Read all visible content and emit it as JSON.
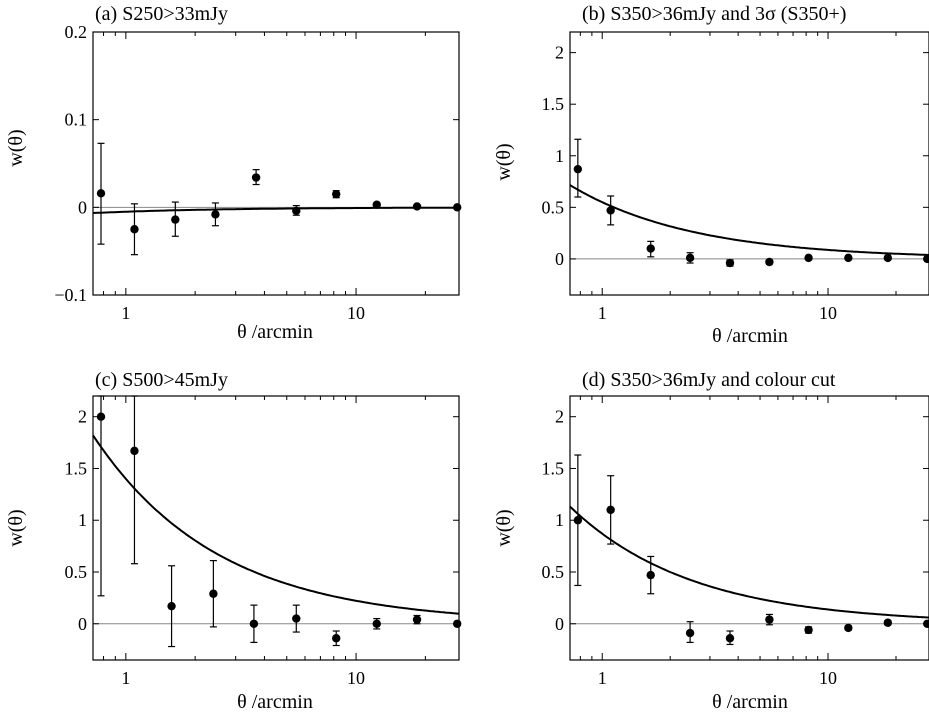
{
  "chart_data": [
    {
      "type": "scatter",
      "title": "(a) S250>33mJy",
      "xlabel": "θ /arcmin",
      "ylabel": "w(θ)",
      "xscale": "log",
      "xlim": [
        0.72,
        28
      ],
      "ylim": [
        -0.1,
        0.2
      ],
      "yticks": [
        -0.1,
        0,
        0.1,
        0.2
      ],
      "yticklabels": [
        "−0.1",
        "0",
        "0.1",
        "0.2"
      ],
      "xticks": [
        1,
        10
      ],
      "xticklabels": [
        "1",
        "10"
      ],
      "points": [
        {
          "x": 0.78,
          "y": 0.016,
          "lo": -0.042,
          "hi": 0.073
        },
        {
          "x": 1.09,
          "y": -0.025,
          "lo": -0.054,
          "hi": 0.004
        },
        {
          "x": 1.64,
          "y": -0.014,
          "lo": -0.033,
          "hi": 0.006
        },
        {
          "x": 2.45,
          "y": -0.008,
          "lo": -0.021,
          "hi": 0.005
        },
        {
          "x": 3.68,
          "y": 0.034,
          "lo": 0.026,
          "hi": 0.043
        },
        {
          "x": 5.5,
          "y": -0.004,
          "lo": -0.009,
          "hi": 0.002
        },
        {
          "x": 8.2,
          "y": 0.015,
          "lo": 0.011,
          "hi": 0.019
        },
        {
          "x": 12.3,
          "y": 0.003,
          "lo": 0.001,
          "hi": 0.005
        },
        {
          "x": 18.4,
          "y": 0.001,
          "lo": 0.0,
          "hi": 0.002
        },
        {
          "x": 27.5,
          "y": 0.0,
          "lo": 0.0,
          "hi": 0.0
        }
      ],
      "model": {
        "A": -0.005,
        "gamma": 1.8
      }
    },
    {
      "type": "scatter",
      "title": "(b) S350>36mJy and 3σ (S350+)",
      "xlabel": "θ /arcmin",
      "ylabel": "w(θ)",
      "xscale": "log",
      "xlim": [
        0.72,
        28
      ],
      "ylim": [
        -0.35,
        2.2
      ],
      "yticks": [
        0,
        0.5,
        1,
        1.5,
        2
      ],
      "yticklabels": [
        "0",
        "0.5",
        "1",
        "1.5",
        "2"
      ],
      "xticks": [
        1,
        10
      ],
      "xticklabels": [
        "1",
        "10"
      ],
      "points": [
        {
          "x": 0.78,
          "y": 0.87,
          "lo": 0.6,
          "hi": 1.16
        },
        {
          "x": 1.09,
          "y": 0.47,
          "lo": 0.33,
          "hi": 0.61
        },
        {
          "x": 1.64,
          "y": 0.1,
          "lo": 0.02,
          "hi": 0.17
        },
        {
          "x": 2.45,
          "y": 0.01,
          "lo": -0.04,
          "hi": 0.06
        },
        {
          "x": 3.68,
          "y": -0.04,
          "lo": -0.07,
          "hi": -0.01
        },
        {
          "x": 5.5,
          "y": -0.03,
          "lo": -0.05,
          "hi": -0.01
        },
        {
          "x": 8.2,
          "y": 0.01,
          "lo": 0.0,
          "hi": 0.02
        },
        {
          "x": 12.3,
          "y": 0.01,
          "lo": 0.0,
          "hi": 0.02
        },
        {
          "x": 18.4,
          "y": 0.01,
          "lo": 0.0,
          "hi": 0.02
        },
        {
          "x": 27.5,
          "y": 0.0,
          "lo": 0.0,
          "hi": 0.0
        }
      ],
      "model": {
        "A": 0.55,
        "gamma": 1.8
      }
    },
    {
      "type": "scatter",
      "title": "(c) S500>45mJy",
      "xlabel": "θ /arcmin",
      "ylabel": "w(θ)",
      "xscale": "log",
      "xlim": [
        0.72,
        28
      ],
      "ylim": [
        -0.35,
        2.2
      ],
      "yticks": [
        0,
        0.5,
        1,
        1.5,
        2
      ],
      "yticklabels": [
        "0",
        "0.5",
        "1",
        "1.5",
        "2"
      ],
      "xticks": [
        1,
        10
      ],
      "xticklabels": [
        "1",
        "10"
      ],
      "points": [
        {
          "x": 0.78,
          "y": 2.0,
          "lo": 0.27,
          "hi": 2.2
        },
        {
          "x": 1.09,
          "y": 1.67,
          "lo": 0.58,
          "hi": 2.2
        },
        {
          "x": 1.58,
          "y": 0.17,
          "lo": -0.22,
          "hi": 0.56
        },
        {
          "x": 2.4,
          "y": 0.29,
          "lo": -0.03,
          "hi": 0.61
        },
        {
          "x": 3.6,
          "y": 0.0,
          "lo": -0.18,
          "hi": 0.18
        },
        {
          "x": 5.5,
          "y": 0.05,
          "lo": -0.08,
          "hi": 0.18
        },
        {
          "x": 8.2,
          "y": -0.14,
          "lo": -0.21,
          "hi": -0.07
        },
        {
          "x": 12.3,
          "y": 0.0,
          "lo": -0.05,
          "hi": 0.05
        },
        {
          "x": 18.4,
          "y": 0.04,
          "lo": 0.0,
          "hi": 0.08
        },
        {
          "x": 27.5,
          "y": 0.0,
          "lo": 0.0,
          "hi": 0.0
        }
      ],
      "model": {
        "A": 1.4,
        "gamma": 1.8
      }
    },
    {
      "type": "scatter",
      "title": "(d) S350>36mJy and colour cut",
      "xlabel": "θ /arcmin",
      "ylabel": "w(θ)",
      "xscale": "log",
      "xlim": [
        0.72,
        28
      ],
      "ylim": [
        -0.35,
        2.2
      ],
      "yticks": [
        0,
        0.5,
        1,
        1.5,
        2
      ],
      "yticklabels": [
        "0",
        "0.5",
        "1",
        "1.5",
        "2"
      ],
      "xticks": [
        1,
        10
      ],
      "xticklabels": [
        "1",
        "10"
      ],
      "points": [
        {
          "x": 0.78,
          "y": 1.0,
          "lo": 0.37,
          "hi": 1.63
        },
        {
          "x": 1.09,
          "y": 1.1,
          "lo": 0.77,
          "hi": 1.43
        },
        {
          "x": 1.64,
          "y": 0.47,
          "lo": 0.29,
          "hi": 0.65
        },
        {
          "x": 2.45,
          "y": -0.09,
          "lo": -0.18,
          "hi": 0.02
        },
        {
          "x": 3.68,
          "y": -0.14,
          "lo": -0.2,
          "hi": -0.07
        },
        {
          "x": 5.5,
          "y": 0.04,
          "lo": -0.01,
          "hi": 0.09
        },
        {
          "x": 8.2,
          "y": -0.06,
          "lo": -0.09,
          "hi": -0.03
        },
        {
          "x": 12.3,
          "y": -0.04,
          "lo": -0.06,
          "hi": -0.02
        },
        {
          "x": 18.4,
          "y": 0.01,
          "lo": -0.01,
          "hi": 0.03
        },
        {
          "x": 27.5,
          "y": 0.0,
          "lo": 0.0,
          "hi": 0.0
        }
      ],
      "model": {
        "A": 0.87,
        "gamma": 1.8
      }
    }
  ]
}
